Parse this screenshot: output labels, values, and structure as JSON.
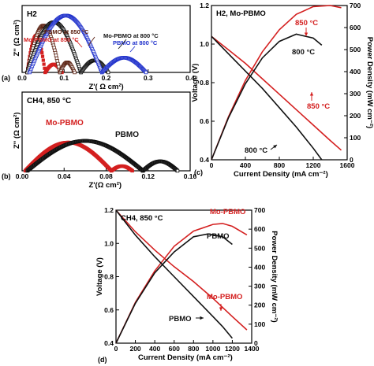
{
  "chart_data": [
    {
      "id": "a",
      "type": "scatter",
      "panel_letter": "(a)",
      "inset_label": "H2",
      "xlabel": "Z'( Ω cm²)",
      "ylabel": "Z'' (Ω cm²)",
      "xlim": [
        0,
        0.4
      ],
      "ylim": [
        0,
        0.1
      ],
      "xticks": [
        "0.0",
        "0.1",
        "0.2",
        "0.3",
        "0.4"
      ],
      "xtick_values": [
        0,
        0.1,
        0.2,
        0.3,
        0.4
      ],
      "series": [
        {
          "name": "Mo-PBMO at 850 °C",
          "color": "#d42020",
          "marker": "square-filled",
          "arcs": [
            [
              0.012,
              0.055,
              0.055
            ],
            [
              0.055,
              0.095,
              0.012
            ]
          ]
        },
        {
          "name": "PBMO at 850 °C",
          "color": "#5a2010",
          "marker": "square-open",
          "arcs": [
            [
              0.012,
              0.09,
              0.07
            ],
            [
              0.09,
              0.125,
              0.015
            ]
          ]
        },
        {
          "name": "Mo-PBMO at 800 °C",
          "color": "#111111",
          "marker": "square-open",
          "arcs": [
            [
              0.012,
              0.14,
              0.075
            ],
            [
              0.14,
              0.205,
              0.018
            ]
          ]
        },
        {
          "name": "PBMO at 800 °C",
          "color": "#2233cc",
          "marker": "square-open",
          "arcs": [
            [
              0.018,
              0.19,
              0.085
            ],
            [
              0.19,
              0.295,
              0.022
            ]
          ]
        }
      ]
    },
    {
      "id": "b",
      "type": "scatter",
      "panel_letter": "(b)",
      "inset_label": "CH4, 850 °C",
      "xlabel": "Z'(Ω cm²)",
      "ylabel": "Z'' (Ω cm²)",
      "xlim": [
        0,
        0.16
      ],
      "ylim": [
        0,
        0.1
      ],
      "xticks": [
        "0.00",
        "0.04",
        "0.08",
        "0.12",
        "0.16"
      ],
      "xtick_values": [
        0,
        0.04,
        0.08,
        0.12,
        0.16
      ],
      "series": [
        {
          "name": "Mo-PBMO",
          "color": "#d42020",
          "marker": "square-filled",
          "arcs": [
            [
              0.003,
              0.085,
              0.036
            ],
            [
              0.085,
              0.105,
              0.006
            ]
          ]
        },
        {
          "name": "PBMO",
          "color": "#111111",
          "marker": "square-open",
          "arcs": [
            [
              0.005,
              0.115,
              0.038
            ],
            [
              0.115,
              0.148,
              0.012
            ]
          ]
        }
      ]
    },
    {
      "id": "c",
      "type": "line",
      "panel_letter": "(c)",
      "inset_label": "H2, Mo-PBMO",
      "xlabel": "Current Density (mA cm⁻²)",
      "ylabel": "Voltage (V)",
      "y2label": "Power Density (mW cm⁻²)",
      "xlim": [
        0,
        1600
      ],
      "ylim": [
        0.4,
        1.2
      ],
      "y2lim": [
        0,
        700
      ],
      "xticks": [
        0,
        400,
        800,
        1200,
        1600
      ],
      "yticks": [
        "0.4",
        "0.6",
        "0.8",
        "1.0",
        "1.2"
      ],
      "y2ticks": [
        0,
        100,
        200,
        300,
        400,
        500,
        600,
        700
      ],
      "series": [
        {
          "name": "850 °C",
          "color": "#d42020",
          "voltage": {
            "x": [
              0,
              200,
              400,
              600,
              800,
              1000,
              1200,
              1400,
              1530
            ],
            "y": [
              1.04,
              0.97,
              0.9,
              0.82,
              0.74,
              0.66,
              0.58,
              0.5,
              0.45
            ]
          },
          "power": {
            "x": [
              0,
              200,
              400,
              600,
              800,
              1000,
              1200,
              1400,
              1530
            ],
            "y": [
              0,
              195,
              360,
              490,
              590,
              660,
              695,
              700,
              690
            ]
          }
        },
        {
          "name": "800 °C",
          "color": "#111111",
          "voltage": {
            "x": [
              0,
              200,
              400,
              600,
              800,
              1000,
              1200,
              1300
            ],
            "y": [
              1.04,
              0.95,
              0.86,
              0.77,
              0.67,
              0.57,
              0.46,
              0.4
            ]
          },
          "power": {
            "x": [
              0,
              200,
              400,
              600,
              800,
              1000,
              1200,
              1300
            ],
            "y": [
              0,
              190,
              345,
              462,
              537,
              570,
              552,
              520
            ]
          }
        }
      ]
    },
    {
      "id": "d",
      "type": "line",
      "panel_letter": "(d)",
      "inset_label": "CH4, 850 °C",
      "xlabel": "Current Density (mA cm⁻²)",
      "ylabel": "Voltage (V)",
      "y2label": "Power Density (mW cm⁻²)",
      "xlim": [
        0,
        1400
      ],
      "ylim": [
        0.4,
        1.2
      ],
      "y2lim": [
        0,
        700
      ],
      "xticks": [
        0,
        200,
        400,
        600,
        800,
        1000,
        1200,
        1400
      ],
      "yticks": [
        "0.4",
        "0.6",
        "0.8",
        "1.0",
        "1.2"
      ],
      "y2ticks": [
        0,
        100,
        200,
        300,
        400,
        500,
        600,
        700
      ],
      "series": [
        {
          "name": "Mo-PBMO",
          "color": "#d42020",
          "voltage": {
            "x": [
              0,
              200,
              400,
              600,
              800,
              1000,
              1200,
              1350
            ],
            "y": [
              1.2,
              1.07,
              0.96,
              0.86,
              0.77,
              0.67,
              0.56,
              0.48
            ]
          },
          "power": {
            "x": [
              0,
              200,
              400,
              600,
              800,
              1000,
              1100,
              1200,
              1350
            ],
            "y": [
              0,
              215,
              380,
              510,
              590,
              625,
              630,
              615,
              570
            ]
          }
        },
        {
          "name": "PBMO",
          "color": "#111111",
          "voltage": {
            "x": [
              0,
              200,
              400,
              600,
              800,
              1000,
              1100,
              1200
            ],
            "y": [
              1.2,
              1.05,
              0.92,
              0.8,
              0.68,
              0.56,
              0.5,
              0.43
            ]
          },
          "power": {
            "x": [
              0,
              200,
              400,
              600,
              800,
              950,
              1100,
              1200
            ],
            "y": [
              0,
              210,
              370,
              480,
              560,
              575,
              560,
              520
            ]
          }
        }
      ]
    }
  ]
}
